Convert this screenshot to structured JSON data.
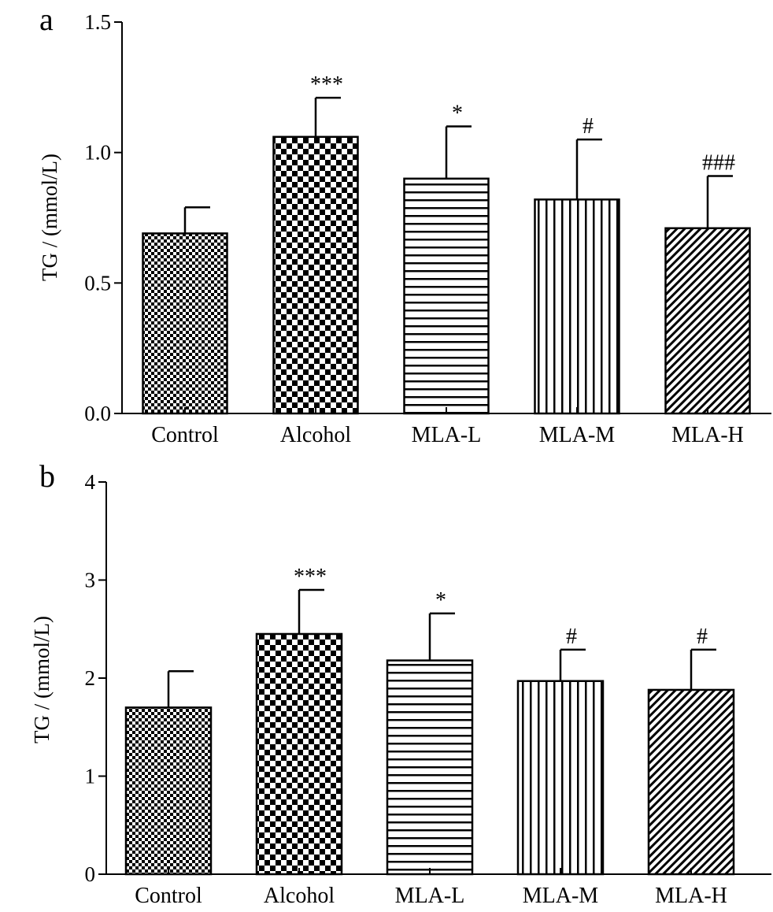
{
  "chart_data": [
    {
      "panel_label": "a",
      "type": "bar",
      "categories": [
        "Control",
        "Alcohol",
        "MLA-L",
        "MLA-M",
        "MLA-H"
      ],
      "values": [
        0.69,
        1.06,
        0.9,
        0.82,
        0.71
      ],
      "errors": [
        0.1,
        0.15,
        0.2,
        0.23,
        0.2
      ],
      "annotations": [
        "",
        "***",
        "*",
        "#",
        "###"
      ],
      "patterns": [
        "fine-checker",
        "coarse-checker",
        "horizontal-lines",
        "vertical-lines",
        "diagonal-lines"
      ],
      "ylabel": "TG / (mmol/L)",
      "xlabel": "",
      "ylim": [
        0,
        1.5
      ],
      "yticks": [
        0.0,
        0.5,
        1.0,
        1.5
      ],
      "ytick_labels": [
        "0.0",
        "0.5",
        "1.0",
        "1.5"
      ],
      "grid": false
    },
    {
      "panel_label": "b",
      "type": "bar",
      "categories": [
        "Control",
        "Alcohol",
        "MLA-L",
        "MLA-M",
        "MLA-H"
      ],
      "values": [
        1.7,
        2.45,
        2.18,
        1.97,
        1.88
      ],
      "errors": [
        0.37,
        0.45,
        0.48,
        0.32,
        0.41
      ],
      "annotations": [
        "",
        "***",
        "*",
        "#",
        "#"
      ],
      "patterns": [
        "fine-checker",
        "coarse-checker",
        "horizontal-lines",
        "vertical-lines",
        "diagonal-lines"
      ],
      "ylabel": "TG / (mmol/L)",
      "xlabel": "",
      "ylim": [
        0,
        4
      ],
      "yticks": [
        0,
        1,
        2,
        3,
        4
      ],
      "ytick_labels": [
        "0",
        "1",
        "2",
        "3",
        "4"
      ],
      "grid": false
    }
  ]
}
